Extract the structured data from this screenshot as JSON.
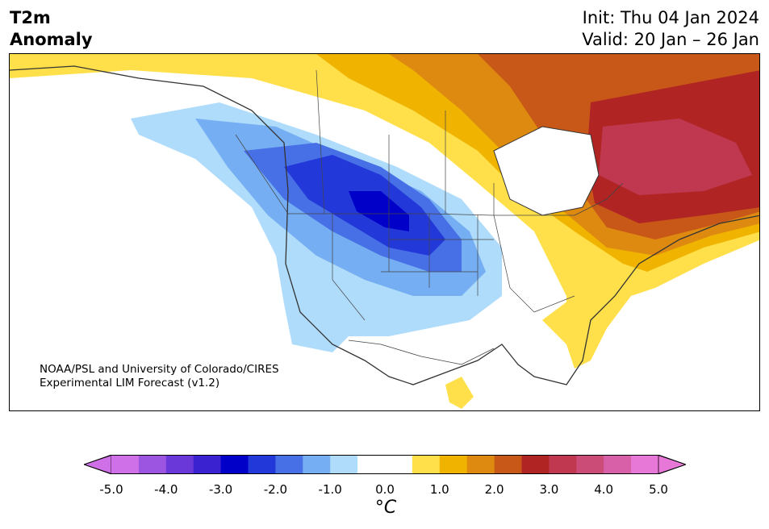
{
  "header": {
    "variable_line1": "T2m",
    "variable_line2": "Anomaly",
    "init": "Init: Thu 04 Jan 2024",
    "valid": "Valid: 20 Jan – 26 Jan"
  },
  "map": {
    "region": "North America",
    "credit_line1": "NOAA/PSL and University of Colorado/CIRES",
    "credit_line2": "Experimental LIM Forecast (v1.2)"
  },
  "colorbar": {
    "unit": "°C",
    "tick_labels": [
      "-5.0",
      "-4.0",
      "-3.0",
      "-2.0",
      "-1.0",
      "0.0",
      "1.0",
      "2.0",
      "3.0",
      "4.0",
      "5.0"
    ],
    "colors": [
      "#d070e8",
      "#9b55e0",
      "#6a38d8",
      "#3a22d0",
      "#0000c8",
      "#2238d8",
      "#4870e6",
      "#75aef2",
      "#b0dcfb",
      "#ffffff",
      "#ffffff",
      "#ffe04a",
      "#f0b400",
      "#de8a10",
      "#c85818",
      "#b02424",
      "#c03850",
      "#cc4c78",
      "#d860a8",
      "#e878d8"
    ],
    "extend_low_color": "#d070e8",
    "extend_high_color": "#e878d8"
  }
}
